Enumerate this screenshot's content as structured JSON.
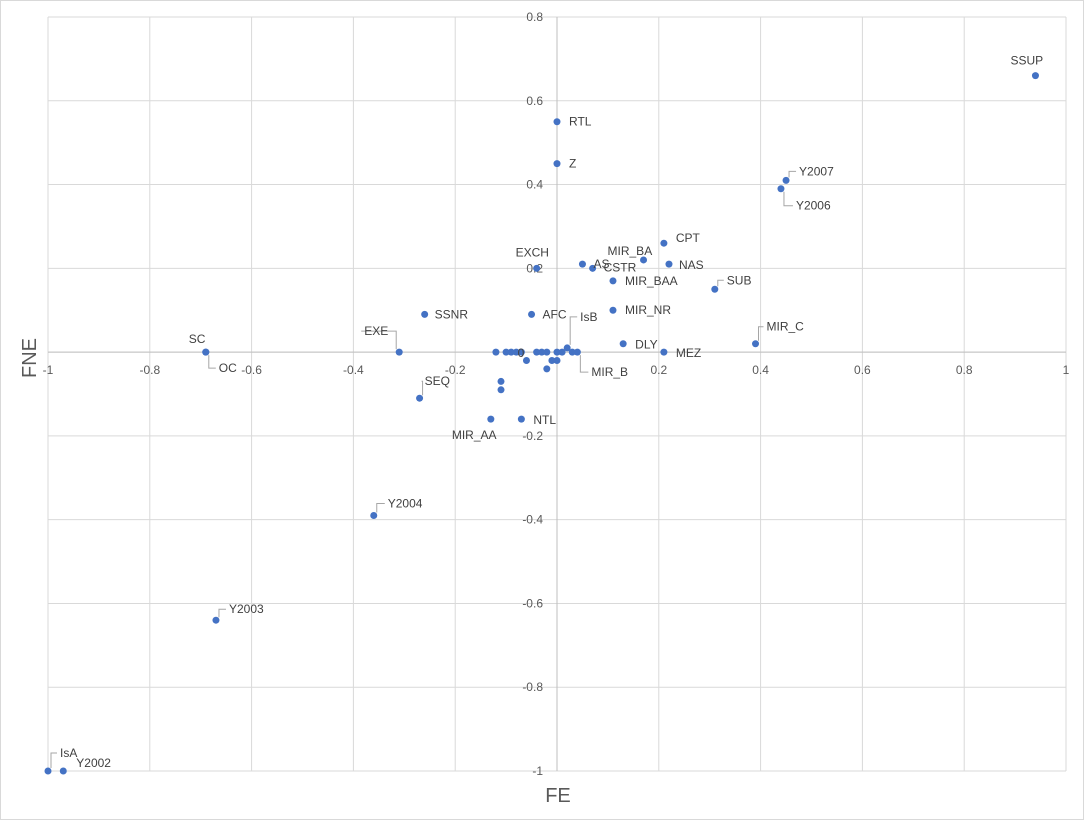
{
  "chart_data": {
    "type": "scatter",
    "title": "",
    "xlabel": "FE",
    "ylabel": "FNE",
    "xlim": [
      -1,
      1
    ],
    "ylim": [
      -1,
      0.8
    ],
    "x_ticks": [
      "-1",
      "-0.8",
      "-0.6",
      "-0.4",
      "-0.2",
      "0",
      "0.2",
      "0.4",
      "0.6",
      "0.8",
      "1"
    ],
    "y_ticks": [
      "0.8",
      "0.6",
      "0.4",
      "0.2",
      "0",
      "-0.2",
      "-0.4",
      "-0.6",
      "-0.8",
      "-1"
    ],
    "grid": true,
    "legend": "none",
    "marker_color": "#4472C4",
    "points": [
      {
        "label": "SSUP",
        "x": 0.94,
        "y": 0.66
      },
      {
        "label": "RTL",
        "x": 0.0,
        "y": 0.55
      },
      {
        "label": "Z",
        "x": 0.0,
        "y": 0.45
      },
      {
        "label": "Y2007",
        "x": 0.45,
        "y": 0.41
      },
      {
        "label": "Y2006",
        "x": 0.44,
        "y": 0.39
      },
      {
        "label": "CPT",
        "x": 0.21,
        "y": 0.26
      },
      {
        "label": "MIR_BA",
        "x": 0.17,
        "y": 0.22
      },
      {
        "label": "NAS",
        "x": 0.22,
        "y": 0.21
      },
      {
        "label": "AS",
        "x": 0.05,
        "y": 0.21
      },
      {
        "label": "EXCH",
        "x": -0.04,
        "y": 0.2
      },
      {
        "label": "CSTR",
        "x": 0.07,
        "y": 0.2
      },
      {
        "label": "MIR_BAA",
        "x": 0.11,
        "y": 0.17
      },
      {
        "label": "SUB",
        "x": 0.31,
        "y": 0.15
      },
      {
        "label": "SSNR",
        "x": -0.26,
        "y": 0.09
      },
      {
        "label": "AFC",
        "x": -0.05,
        "y": 0.09
      },
      {
        "label": "MIR_NR",
        "x": 0.11,
        "y": 0.1
      },
      {
        "label": "IsB",
        "x": 0.02,
        "y": 0.01
      },
      {
        "label": "MIR_C",
        "x": 0.39,
        "y": 0.02
      },
      {
        "label": "DLY",
        "x": 0.13,
        "y": 0.02
      },
      {
        "label": "SC",
        "x": -0.69,
        "y": 0.0
      },
      {
        "label": "OC",
        "x": -0.69,
        "y": 0.0
      },
      {
        "label": "EXE",
        "x": -0.31,
        "y": 0.0
      },
      {
        "label": "MEZ",
        "x": 0.21,
        "y": 0.0
      },
      {
        "label": "MIR_B",
        "x": 0.04,
        "y": 0.0
      },
      {
        "label": "0",
        "x": -0.04,
        "y": 0.0
      },
      {
        "label": "SEQ",
        "x": -0.27,
        "y": -0.11
      },
      {
        "label": "MIR_AA",
        "x": -0.13,
        "y": -0.16
      },
      {
        "label": "NTL",
        "x": -0.07,
        "y": -0.16
      },
      {
        "label": "Y2004",
        "x": -0.36,
        "y": -0.39
      },
      {
        "label": "Y2003",
        "x": -0.67,
        "y": -0.64
      },
      {
        "label": "IsA",
        "x": -1.0,
        "y": -1.0
      },
      {
        "label": "Y2002",
        "x": -0.97,
        "y": -1.0
      },
      {
        "label": "",
        "x": -0.12,
        "y": 0.0
      },
      {
        "label": "",
        "x": -0.1,
        "y": 0.0
      },
      {
        "label": "",
        "x": -0.09,
        "y": 0.0
      },
      {
        "label": "",
        "x": -0.08,
        "y": 0.0
      },
      {
        "label": "",
        "x": -0.07,
        "y": 0.0
      },
      {
        "label": "",
        "x": -0.03,
        "y": 0.0
      },
      {
        "label": "",
        "x": -0.02,
        "y": 0.0
      },
      {
        "label": "",
        "x": 0.0,
        "y": 0.0
      },
      {
        "label": "",
        "x": 0.01,
        "y": 0.0
      },
      {
        "label": "",
        "x": 0.03,
        "y": 0.0
      },
      {
        "label": "",
        "x": -0.06,
        "y": -0.02
      },
      {
        "label": "",
        "x": -0.01,
        "y": -0.02
      },
      {
        "label": "",
        "x": 0.0,
        "y": -0.02
      },
      {
        "label": "",
        "x": -0.02,
        "y": -0.04
      },
      {
        "label": "",
        "x": -0.11,
        "y": -0.07
      },
      {
        "label": "",
        "x": -0.11,
        "y": -0.09
      }
    ]
  }
}
